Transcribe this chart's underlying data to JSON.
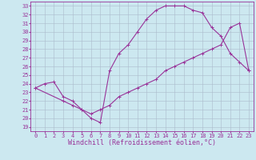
{
  "xlabel": "Windchill (Refroidissement éolien,°C)",
  "bg_color": "#cce8f0",
  "line_color": "#993399",
  "grid_color": "#aabbcc",
  "xlim": [
    -0.5,
    23.5
  ],
  "ylim": [
    18.5,
    33.5
  ],
  "xticks": [
    0,
    1,
    2,
    3,
    4,
    5,
    6,
    7,
    8,
    9,
    10,
    11,
    12,
    13,
    14,
    15,
    16,
    17,
    18,
    19,
    20,
    21,
    22,
    23
  ],
  "yticks": [
    19,
    20,
    21,
    22,
    23,
    24,
    25,
    26,
    27,
    28,
    29,
    30,
    31,
    32,
    33
  ],
  "line1_x": [
    0,
    1,
    2,
    3,
    4,
    5,
    6,
    7,
    8,
    9,
    10,
    11,
    12,
    13,
    14,
    15,
    16,
    17,
    18,
    19,
    20,
    21,
    22,
    23
  ],
  "line1_y": [
    23.5,
    24.0,
    24.2,
    22.5,
    22.0,
    21.0,
    20.0,
    19.5,
    25.5,
    27.5,
    28.5,
    30.0,
    31.5,
    32.5,
    33.0,
    33.0,
    33.0,
    32.5,
    32.2,
    30.5,
    29.5,
    27.5,
    26.5,
    25.5
  ],
  "line2_x": [
    0,
    3,
    4,
    5,
    6,
    7,
    8,
    9,
    10,
    11,
    12,
    13,
    14,
    15,
    16,
    17,
    18,
    19,
    20,
    21,
    22,
    23
  ],
  "line2_y": [
    23.5,
    22.0,
    21.5,
    21.0,
    20.5,
    21.0,
    21.5,
    22.5,
    23.0,
    23.5,
    24.0,
    24.5,
    25.5,
    26.0,
    26.5,
    27.0,
    27.5,
    28.0,
    28.5,
    30.5,
    31.0,
    25.5
  ],
  "tick_fontsize": 5.0,
  "xlabel_fontsize": 6.0,
  "marker_size": 3.0,
  "line_width": 0.8
}
